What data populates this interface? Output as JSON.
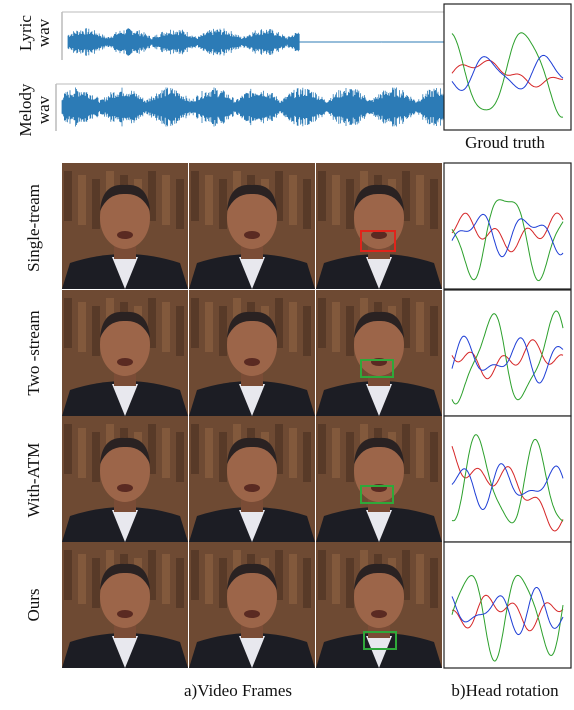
{
  "waveforms": [
    {
      "line1": "Lyric",
      "line2": "wav"
    },
    {
      "line1": "Melody",
      "line2": "wav"
    }
  ],
  "ground_truth_caption": "Groud truth",
  "rows": [
    {
      "label": "Single-tream"
    },
    {
      "label": "Two -stream"
    },
    {
      "label": "With-ATM"
    },
    {
      "label": "Ours"
    }
  ],
  "captions": {
    "video_frames": "a)Video Frames",
    "head_rotation": "b)Head rotation"
  }
}
